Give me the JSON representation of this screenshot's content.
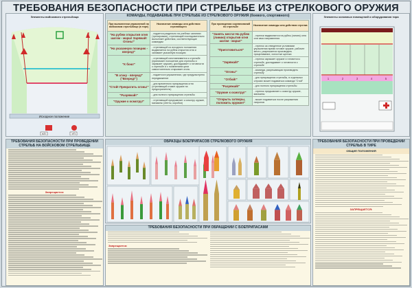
{
  "title": "ТРЕБОВАНИЯ БЕЗОПАСНОСТИ ПРИ СТРЕЛЬБЕ ИЗ СТРЕЛКОВОГО ОРУЖИЯ",
  "left_diagram": {
    "caption": "Элементы войскового стрельбища",
    "start_label": "Исходное положение",
    "kp": "КП",
    "up": "УП"
  },
  "commands": {
    "caption": "КОМАНДЫ, ПОДАВАЕМЫЕ ПРИ СТРЕЛЬБЕ ИЗ СТРЕЛКОВОГО ОРУЖИЯ (боевого, спортивного)",
    "left_headers": [
      "При выполнении упражнений на войсковом стрельбище (в тире)",
      "Назначение команды или действия стреляющего"
    ],
    "right_headers": [
      "При проведении соревнований по стрельбе",
      "Назначение команды или действия стрелка"
    ],
    "left_rows": [
      {
        "cmd": "\"На рубеж открытия огня шагом - марш! Заряжай! Огонь!\"",
        "desc": "- подается раздельно на учебных занятиях (тренировках), стреляющий последовательно выполняет действия, соответствующие командам"
      },
      {
        "cmd": "\"На указанную позицию - вперед!\"",
        "desc": "- стреляющий из исходного положения выдвигается на рубеж открытия огня и занимает указанную позицию"
      },
      {
        "cmd": "\"К бою!\"",
        "desc": "- стреляющий изготавливается к стрельбе (принимает положение для стрельбы и заряжает оружие), докладывает о готовности к стрельбе и с появлением цели самостоятельно открывает огонь"
      },
      {
        "cmd": "\"В атаку - вперед!\" (\"Вперед!\")",
        "desc": "- подается в упражнениях, где предусмотрено передвижение"
      },
      {
        "cmd": "\"Стой! Прекратить огонь!\"",
        "desc": "- для временного прекращения огня (стреляющий ставит оружие на предохранитель)"
      },
      {
        "cmd": "\"Разряжай!\"",
        "desc": "- для полного прекращения стрельбы"
      },
      {
        "cmd": "\"Оружие к осмотру!\"",
        "desc": "- стреляющий предъявляет к осмотру оружие, магазины (ленты, коробки)"
      }
    ],
    "right_rows": [
      {
        "cmd": "\"Занять места! На рубеж (линию) открытия огня шагом - марш!\"",
        "desc": "- стрелки выдвигаются на рубеж (линию) огня или свои направления"
      },
      {
        "cmd": "\"Приготовиться!\"",
        "desc": "- стрелок за отведенное условиями упражнения время готовит оружие, рабочее место, разрешается производить прицеливание, холостые щелчки"
      },
      {
        "cmd": "\"Заряжай!\"",
        "desc": "- стрелок заряжает оружие и готовится к стрельбе, докладывает о готовности к стрельбе"
      },
      {
        "cmd": "\"Огонь!\"",
        "desc": "- команда, разрешающая производить стрельбу"
      },
      {
        "cmd": "\"Отбой!\"",
        "desc": "- для прекращения стрельбы, в отдельных случаях может подаваться команда \"Стой\""
      },
      {
        "cmd": "\"Разряжай!\"",
        "desc": "- для полного прекращения стрельбы"
      },
      {
        "cmd": "\"Оружие к осмотру!\"",
        "desc": "- стрелок предъявляет к осмотру оружие, магазины"
      },
      {
        "cmd": "\"Открыть затворы, положить оружие!\"",
        "desc": "- может подаваться после разряжения патронов"
      }
    ]
  },
  "right_diagram": {
    "caption": "Элементы основных помещений и оборудования тира",
    "lanes": [
      "1",
      "2",
      "3",
      "4",
      "5"
    ]
  },
  "range_rules": {
    "title": "ТРЕБОВАНИЯ БЕЗОПАСНОСТИ ПРИ ПРОВЕДЕНИИ СТРЕЛЬБ НА ВОЙСКОВОМ СТРЕЛЬБИЩЕ",
    "forbidden": "Запрещается:"
  },
  "ammo": {
    "title": "ОБРАЗЦЫ БОЕПРИПАСОВ СТРЕЛКОВОГО ОРУЖИЯ"
  },
  "ammo_rules": {
    "title": "ТРЕБОВАНИЯ БЕЗОПАСНОСТИ ПРИ ОБРАЩЕНИИ С БОЕПРИПАСАМИ",
    "forbidden": "Запрещается:"
  },
  "tir_rules": {
    "title": "ТРЕБОВАНИЯ БЕЗОПАСНОСТИ ПРИ ПРОВЕДЕНИИ СТРЕЛЬБ В ТИРЕ",
    "subtitle": "ОБЩИЕ ПОЛОЖЕНИЯ",
    "forbidden": "ЗАПРЕЩАЕТСЯ:"
  },
  "colors": {
    "command": "#8c1c1c",
    "row_bg": "#c8ecd2",
    "warning": "#c21e1e"
  }
}
